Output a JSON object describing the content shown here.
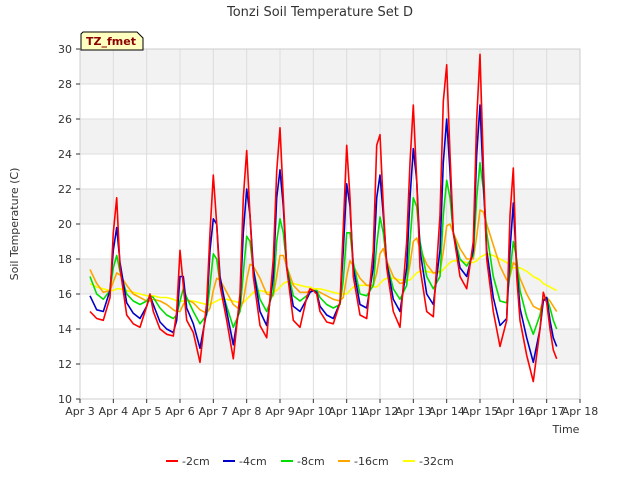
{
  "chart_data": {
    "type": "line",
    "title": "Tonzi Soil Temperature Set D",
    "xlabel": "Time",
    "ylabel": "Soil Temperature (C)",
    "badge": "TZ_fmet",
    "xlim": [
      3,
      18
    ],
    "ylim": [
      10,
      30
    ],
    "x_ticks": [
      3,
      4,
      5,
      6,
      7,
      8,
      9,
      10,
      11,
      12,
      13,
      14,
      15,
      16,
      17,
      18
    ],
    "x_tick_labels": [
      "Apr 3",
      "Apr 4",
      "Apr 5",
      "Apr 6",
      "Apr 7",
      "Apr 8",
      "Apr 9",
      "Apr 10",
      "Apr 11",
      "Apr 12",
      "Apr 13",
      "Apr 14",
      "Apr 15",
      "Apr 16",
      "Apr 17",
      "Apr 18"
    ],
    "y_ticks": [
      10,
      12,
      14,
      16,
      18,
      20,
      22,
      24,
      26,
      28,
      30
    ],
    "y_tick_labels": [
      "10",
      "12",
      "14",
      "16",
      "18",
      "20",
      "22",
      "24",
      "26",
      "28",
      "30"
    ],
    "x": [
      3.3,
      3.5,
      3.7,
      3.9,
      4.0,
      4.1,
      4.2,
      4.4,
      4.6,
      4.8,
      5.0,
      5.1,
      5.2,
      5.4,
      5.6,
      5.8,
      5.9,
      6.0,
      6.1,
      6.2,
      6.4,
      6.6,
      6.8,
      6.9,
      7.0,
      7.1,
      7.2,
      7.4,
      7.6,
      7.8,
      7.9,
      8.0,
      8.1,
      8.2,
      8.4,
      8.6,
      8.8,
      8.9,
      9.0,
      9.1,
      9.2,
      9.4,
      9.6,
      9.8,
      9.9,
      10.0,
      10.1,
      10.2,
      10.4,
      10.6,
      10.8,
      10.9,
      11.0,
      11.1,
      11.2,
      11.4,
      11.6,
      11.8,
      11.9,
      12.0,
      12.1,
      12.2,
      12.4,
      12.6,
      12.8,
      12.9,
      13.0,
      13.1,
      13.2,
      13.4,
      13.6,
      13.8,
      13.9,
      14.0,
      14.1,
      14.2,
      14.4,
      14.6,
      14.8,
      14.9,
      15.0,
      15.1,
      15.2,
      15.4,
      15.6,
      15.8,
      15.9,
      16.0,
      16.1,
      16.2,
      16.4,
      16.6,
      16.8,
      16.9,
      17.0,
      17.1,
      17.2,
      17.3
    ],
    "series": [
      {
        "name": "-2cm",
        "color": "#ff0000",
        "values": [
          15.0,
          14.6,
          14.5,
          15.8,
          19.5,
          21.5,
          17.5,
          14.8,
          14.3,
          14.1,
          15.3,
          16.0,
          15.0,
          14.0,
          13.7,
          13.6,
          15.0,
          18.5,
          16.5,
          14.5,
          13.8,
          12.1,
          15.5,
          19.5,
          22.8,
          20.0,
          16.5,
          14.5,
          12.3,
          16.0,
          21.5,
          24.2,
          20.5,
          17.0,
          14.2,
          13.5,
          18.0,
          23.0,
          25.5,
          21.5,
          17.5,
          14.5,
          14.1,
          15.8,
          16.3,
          16.2,
          16.0,
          15.0,
          14.4,
          14.3,
          15.5,
          19.8,
          24.5,
          21.5,
          17.0,
          14.8,
          14.6,
          18.5,
          24.5,
          25.1,
          21.0,
          17.5,
          15.0,
          14.1,
          19.0,
          23.5,
          26.8,
          22.5,
          17.5,
          15.0,
          14.7,
          20.5,
          27.0,
          29.1,
          24.0,
          19.5,
          17.0,
          16.3,
          19.0,
          26.0,
          29.7,
          23.5,
          18.0,
          15.0,
          13.0,
          14.5,
          20.5,
          23.2,
          17.0,
          14.5,
          12.5,
          11.0,
          14.0,
          16.1,
          15.5,
          14.0,
          12.8,
          12.3
        ]
      },
      {
        "name": "-4cm",
        "color": "#0000cc",
        "values": [
          15.9,
          15.1,
          15.0,
          16.2,
          18.5,
          19.8,
          17.8,
          15.5,
          14.9,
          14.6,
          15.3,
          15.9,
          15.4,
          14.4,
          14.0,
          13.8,
          14.5,
          17.0,
          17.0,
          15.2,
          14.3,
          12.9,
          15.0,
          18.5,
          20.3,
          20.0,
          17.0,
          15.0,
          13.1,
          15.5,
          19.5,
          22.0,
          20.5,
          17.5,
          15.0,
          14.2,
          17.0,
          21.5,
          23.1,
          21.0,
          17.5,
          15.3,
          15.0,
          15.7,
          16.1,
          16.2,
          16.1,
          15.3,
          14.8,
          14.6,
          15.5,
          18.5,
          22.3,
          21.0,
          17.5,
          15.4,
          15.2,
          17.5,
          21.5,
          22.8,
          20.5,
          17.8,
          15.7,
          15.0,
          17.5,
          21.5,
          24.3,
          22.5,
          18.5,
          16.0,
          15.4,
          18.5,
          23.5,
          26.0,
          23.0,
          19.5,
          17.5,
          17.0,
          18.5,
          24.0,
          26.8,
          22.5,
          18.5,
          15.8,
          14.2,
          14.6,
          18.5,
          21.2,
          17.5,
          15.2,
          13.5,
          12.1,
          14.0,
          15.6,
          15.8,
          14.5,
          13.5,
          13.0
        ]
      },
      {
        "name": "-8cm",
        "color": "#00dd00",
        "values": [
          17.0,
          16.0,
          15.7,
          16.2,
          17.5,
          18.2,
          17.3,
          16.0,
          15.6,
          15.4,
          15.6,
          15.9,
          15.8,
          15.2,
          14.8,
          14.6,
          14.8,
          15.6,
          16.3,
          15.8,
          15.0,
          14.3,
          14.8,
          16.5,
          18.3,
          18.0,
          16.6,
          15.3,
          14.1,
          15.0,
          17.2,
          19.3,
          19.0,
          17.4,
          15.7,
          15.0,
          16.1,
          19.0,
          20.3,
          19.5,
          17.6,
          15.9,
          15.6,
          15.9,
          16.1,
          16.2,
          16.2,
          15.8,
          15.4,
          15.2,
          15.4,
          16.8,
          19.5,
          19.5,
          17.8,
          16.0,
          15.9,
          16.5,
          18.8,
          20.4,
          19.5,
          17.8,
          16.3,
          15.7,
          16.5,
          19.0,
          21.5,
          21.0,
          19.0,
          17.0,
          16.3,
          17.0,
          20.5,
          22.5,
          21.5,
          19.5,
          18.0,
          17.6,
          18.2,
          21.5,
          23.5,
          22.0,
          19.5,
          17.0,
          15.6,
          15.5,
          17.2,
          19.0,
          18.0,
          16.2,
          14.7,
          13.7,
          14.8,
          15.7,
          15.8,
          15.2,
          14.5,
          14.0
        ]
      },
      {
        "name": "-16cm",
        "color": "#ffa500",
        "values": [
          17.4,
          16.6,
          16.1,
          16.2,
          16.7,
          17.2,
          17.1,
          16.5,
          16.0,
          15.8,
          15.6,
          15.6,
          15.7,
          15.6,
          15.4,
          15.1,
          15.0,
          15.0,
          15.4,
          15.7,
          15.5,
          15.1,
          14.9,
          15.2,
          16.2,
          16.9,
          16.8,
          16.1,
          15.4,
          15.1,
          15.6,
          16.8,
          17.7,
          17.6,
          16.9,
          16.0,
          15.9,
          17.0,
          18.2,
          18.2,
          17.6,
          16.5,
          16.1,
          16.1,
          16.2,
          16.2,
          16.2,
          16.1,
          15.9,
          15.7,
          15.6,
          15.8,
          17.0,
          17.9,
          17.6,
          16.9,
          16.5,
          16.5,
          17.2,
          18.3,
          18.6,
          17.9,
          17.0,
          16.6,
          16.7,
          17.7,
          19.0,
          19.2,
          18.6,
          17.7,
          17.2,
          17.3,
          18.4,
          19.9,
          20.0,
          19.5,
          18.6,
          18.0,
          18.0,
          19.3,
          20.8,
          20.7,
          20.0,
          18.8,
          17.6,
          16.8,
          17.0,
          17.8,
          17.6,
          16.9,
          16.0,
          15.3,
          15.1,
          15.6,
          15.8,
          15.6,
          15.3,
          15.0
        ]
      },
      {
        "name": "-32cm",
        "color": "#ffff00",
        "values": [
          16.6,
          16.4,
          16.3,
          16.2,
          16.2,
          16.3,
          16.3,
          16.2,
          16.1,
          16.0,
          15.9,
          15.9,
          15.9,
          15.8,
          15.8,
          15.7,
          15.6,
          15.6,
          15.6,
          15.6,
          15.6,
          15.5,
          15.4,
          15.4,
          15.5,
          15.6,
          15.7,
          15.7,
          15.6,
          15.5,
          15.5,
          15.7,
          15.9,
          16.1,
          16.2,
          16.1,
          16.1,
          16.2,
          16.4,
          16.6,
          16.7,
          16.6,
          16.5,
          16.4,
          16.4,
          16.3,
          16.3,
          16.3,
          16.2,
          16.1,
          16.0,
          16.0,
          16.0,
          16.2,
          16.4,
          16.5,
          16.5,
          16.4,
          16.4,
          16.6,
          16.8,
          16.9,
          16.9,
          16.8,
          16.8,
          16.8,
          17.0,
          17.2,
          17.3,
          17.3,
          17.2,
          17.2,
          17.4,
          17.6,
          17.8,
          17.9,
          17.9,
          17.8,
          17.8,
          17.9,
          18.1,
          18.2,
          18.3,
          18.2,
          18.0,
          17.8,
          17.6,
          17.5,
          17.5,
          17.5,
          17.3,
          17.0,
          16.8,
          16.6,
          16.5,
          16.4,
          16.3,
          16.2
        ]
      }
    ],
    "legend": [
      "-2cm",
      "-4cm",
      "-8cm",
      "-16cm",
      "-32cm"
    ],
    "legend_position": "bottom",
    "grid": true
  }
}
